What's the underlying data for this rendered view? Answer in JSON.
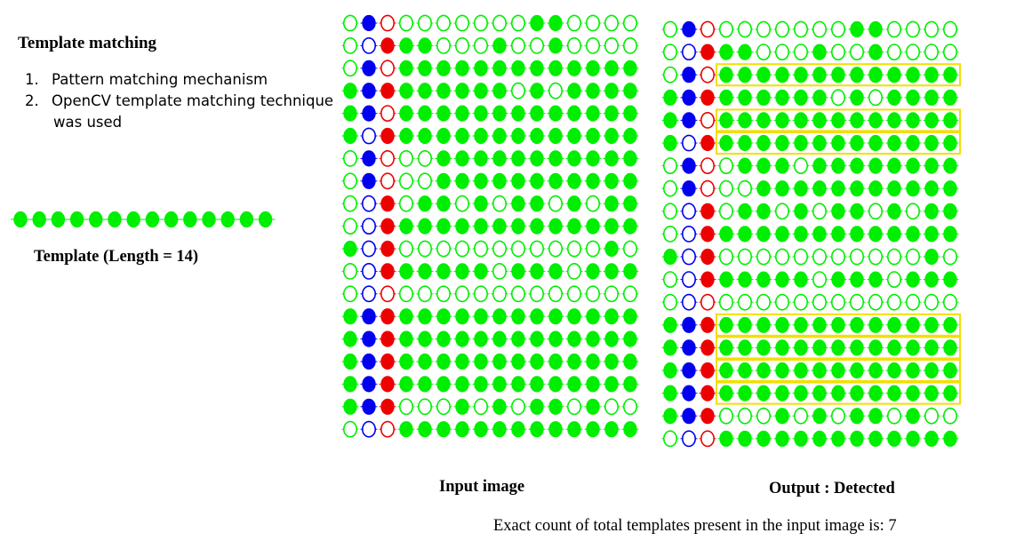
{
  "heading": "Template matching",
  "steps": [
    {
      "num": "1.",
      "text": "Pattern matching mechanism",
      "cont": ""
    },
    {
      "num": "2.",
      "text": "OpenCV template matching technique",
      "cont": "was used"
    }
  ],
  "template_caption": "Template (Length = 14)",
  "template_length": 14,
  "input_caption": "Input image",
  "output_caption": "Output : Detected",
  "count_label": "Exact count of total templates present in the input image is: 7",
  "colors": {
    "green": "#00ee00",
    "blue": "#0000ee",
    "red": "#ee0000",
    "highlight": "#f2e000"
  },
  "legend_codes": {
    "G": "green filled",
    "g": "green hollow",
    "B": "blue filled",
    "b": "blue hollow",
    "R": "red filled",
    "r": "red hollow"
  },
  "input_grid": [
    "gBrgggggggGGgggg",
    "gbRGGgggGggGgggg",
    "gBrGGGGGGGGGGGGG",
    "GBRGGGGGGgGgGGGG",
    "GBrGGGGGGGGGGGGG",
    "GbRGGGGGGGGGGGGG",
    "gBrggGGGGGGGGGGG",
    "gBrggGGGGGGGGGGG",
    "gbRgGGgGgGGgGgGG",
    "gbRGGGGGGGGGGGGG",
    "GbRgggggggggggGg",
    "gbRGGGGGgGGGgGGG",
    "gbrggggggggggggg",
    "GBRGGGGGGGGGGGGG",
    "GBRGGGGGGGGGGGGG",
    "GBRGGGGGGGGGGGGG",
    "GBRGGGGGGGGGGGGG",
    "GBRgggGgGgGGgGgg",
    "gbrGGGGGGGGGGGGG"
  ],
  "output_grid": [
    "gBrgggggggGGgggg",
    "gbRGGgggGggGgggg",
    "gBrGGGGGGGGGGGGG",
    "GBRGGGGGGgGgGGGG",
    "GBrGGGGGGGGGGGGG",
    "GbRGGGGGGGGGGGGG",
    "gBrgGGGgGGGGGGGG",
    "gBrggGGGGGGGGGGG",
    "gbRgGGgGgGGgGgGG",
    "gbRGGGGGGGGGGGGG",
    "GbRgggggggggggGg",
    "gbRGGGGGgGGGgGGG",
    "gbrggggggggggggg",
    "GBRGGGGGGGGGGGGG",
    "GBRGGGGGGGGGGGGG",
    "GBRGGGGGGGGGGGGG",
    "GBRGGGGGGGGGGGGG",
    "GBRgggGgGgGGgGgg",
    "gbrGGGGGGGGGGGGG"
  ],
  "detected_rows": [
    2,
    4,
    5,
    13,
    14,
    15,
    16
  ]
}
